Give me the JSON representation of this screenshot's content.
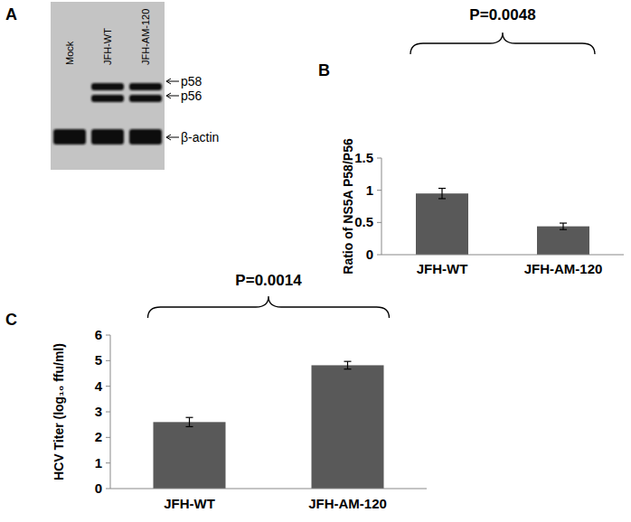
{
  "chart_data": [
    {
      "type": "bar",
      "label": "B",
      "y_label": "Ratio of NS5A P58/P56",
      "categories": [
        "JFH-WT",
        "JFH-AM-120"
      ],
      "values": [
        0.95,
        0.44
      ],
      "errors": [
        0.08,
        0.05
      ],
      "color": "#595959",
      "ylim": [
        0,
        1.5
      ],
      "yticks": [
        0,
        0.5,
        1,
        1.5
      ],
      "grid": false,
      "annotations": [
        "P=0.0048"
      ]
    },
    {
      "type": "bar",
      "label": "C",
      "y_label": "HCV Titer (log₁₀ ffu/ml)",
      "categories": [
        "JFH-WT",
        "JFH-AM-120"
      ],
      "values": [
        2.6,
        4.82
      ],
      "errors": [
        0.18,
        0.15
      ],
      "color": "#595959",
      "ylim": [
        0,
        6
      ],
      "yticks": [
        0,
        1,
        2,
        3,
        4,
        5,
        6
      ],
      "grid": false,
      "annotations": [
        "P=0.0014"
      ]
    }
  ],
  "blot": {
    "label": "A",
    "lanes": [
      "Mock",
      "JFH-WT",
      "JFH-AM-120"
    ],
    "bands": [
      {
        "name": "p58",
        "lanes": [
          "JFH-WT",
          "JFH-AM-120"
        ]
      },
      {
        "name": "p56",
        "lanes": [
          "JFH-WT",
          "JFH-AM-120"
        ]
      },
      {
        "name": "β-actin",
        "lanes": [
          "Mock",
          "JFH-WT",
          "JFH-AM-120"
        ]
      }
    ]
  }
}
